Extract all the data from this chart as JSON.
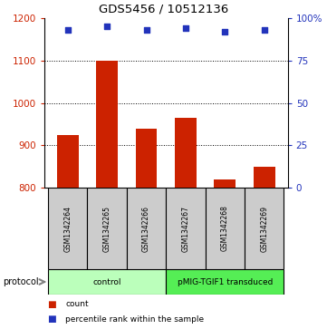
{
  "title": "GDS5456 / 10512136",
  "samples": [
    "GSM1342264",
    "GSM1342265",
    "GSM1342266",
    "GSM1342267",
    "GSM1342268",
    "GSM1342269"
  ],
  "counts": [
    925,
    1100,
    940,
    965,
    820,
    850
  ],
  "percentile_ranks": [
    93,
    95,
    93,
    94,
    92,
    93
  ],
  "ylim_left": [
    800,
    1200
  ],
  "ylim_right": [
    0,
    100
  ],
  "yticks_left": [
    800,
    900,
    1000,
    1100,
    1200
  ],
  "yticks_right": [
    0,
    25,
    50,
    75,
    100
  ],
  "bar_color": "#CC2200",
  "dot_color": "#2233BB",
  "bar_bottom": 800,
  "groups": [
    {
      "label": "control",
      "start": 0,
      "end": 3,
      "color": "#BBFFBB"
    },
    {
      "label": "pMIG-TGIF1 transduced",
      "start": 3,
      "end": 6,
      "color": "#55EE55"
    }
  ],
  "protocol_label": "protocol",
  "legend_count_label": "count",
  "legend_percentile_label": "percentile rank within the sample",
  "tick_label_color_left": "#CC2200",
  "tick_label_color_right": "#2233BB",
  "sample_box_color": "#CCCCCC",
  "bar_width": 0.55
}
